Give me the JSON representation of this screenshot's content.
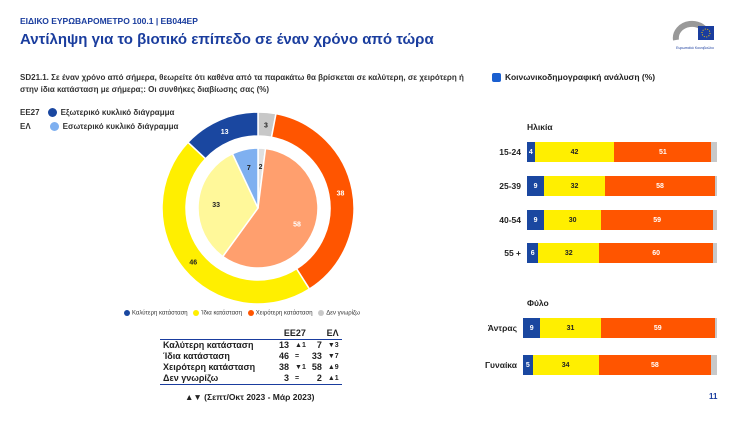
{
  "header": {
    "kicker": "ΕΙΔΙΚΟ ΕΥΡΩΒΑΡΟΜΕΤΡΟ 100.1 | EB044EP",
    "title": "Αντίληψη για το βιοτικό επίπεδο σε έναν χρόνο από τώρα",
    "logo_text": "Ευρωπαϊκό Κοινοβούλιο"
  },
  "question": "SD21.1. Σε έναν χρόνο από σήμερα, θεωρείτε ότι καθένα από τα παρακάτω θα βρίσκεται σε καλύτερη, σε χειρότερη ή στην ίδια κατάσταση με σήμερα;: Οι συνθήκες διαβίωσης σας (%)",
  "legend_rings": [
    {
      "code": "ΕΕ27",
      "label": "Εξωτερικό κυκλικό διάγραμμα"
    },
    {
      "code": "ΕΛ",
      "label": "Εσωτερικό κυκλικό διάγραμμα"
    }
  ],
  "colors": {
    "better": "#1a47a0",
    "same": "#ffef00",
    "worse": "#ff5500",
    "dk": "#c8c8c8",
    "accent": "#1a3d9e",
    "inner_better": "#7fb0f0",
    "inner_same": "#fff89a",
    "inner_worse": "#ff9f6e",
    "inner_dk": "#e0e0e0"
  },
  "chart_data": [
    {
      "type": "pie",
      "title": "",
      "categories": [
        "Καλύτερη κατάσταση",
        "Ίδια κατάσταση",
        "Χειρότερη κατάσταση",
        "Δεν γνωρίζω"
      ],
      "series": [
        {
          "name": "ΕΕ27",
          "values": [
            13,
            46,
            38,
            3
          ]
        },
        {
          "name": "ΕΛ",
          "values": [
            7,
            33,
            58,
            2
          ]
        }
      ],
      "legend": [
        "Καλύτερη κατάσταση",
        "Ίδια κατάσταση",
        "Χειρότερη κατάσταση",
        "Δεν γνωρίζω"
      ],
      "legend_placement": "bottom"
    },
    {
      "type": "bar",
      "stacked": true,
      "orientation": "horizontal",
      "title": "Κοινωνικοδημογραφική ανάλυση (%)",
      "groups": [
        {
          "name": "Ηλικία",
          "rows": [
            {
              "label": "15-24",
              "values": [
                4,
                42,
                51,
                3
              ]
            },
            {
              "label": "25-39",
              "values": [
                9,
                32,
                58,
                1
              ]
            },
            {
              "label": "40-54",
              "values": [
                9,
                30,
                59,
                2
              ]
            },
            {
              "label": "55 +",
              "values": [
                6,
                32,
                60,
                2
              ]
            }
          ]
        },
        {
          "name": "Φύλο",
          "rows": [
            {
              "label": "Άντρας",
              "values": [
                9,
                31,
                59,
                1
              ]
            },
            {
              "label": "Γυναίκα",
              "values": [
                5,
                34,
                58,
                3
              ]
            }
          ]
        }
      ],
      "categories": [
        "Καλύτερη κατάσταση",
        "Ίδια κατάσταση",
        "Χειρότερη κατάσταση",
        "Δεν γνωρίζω"
      ]
    }
  ],
  "table": {
    "headers": [
      "ΕΕ27",
      "ΕΛ"
    ],
    "rows": [
      {
        "label": "Καλύτερη κατάσταση",
        "eu": "13",
        "eu_ch": "▲1",
        "el": "7",
        "el_ch": "▼3"
      },
      {
        "label": "Ίδια κατάσταση",
        "eu": "46",
        "eu_ch": "=",
        "el": "33",
        "el_ch": "▼7"
      },
      {
        "label": "Χειρότερη κατάσταση",
        "eu": "38",
        "eu_ch": "▼1",
        "el": "58",
        "el_ch": "▲9"
      },
      {
        "label": "Δεν γνωρίζω",
        "eu": "3",
        "eu_ch": "=",
        "el": "2",
        "el_ch": "▲1"
      }
    ],
    "footnote": "▲▼ (Σεπτ/Οκτ 2023 - Μάρ 2023)"
  },
  "page_number": "11"
}
